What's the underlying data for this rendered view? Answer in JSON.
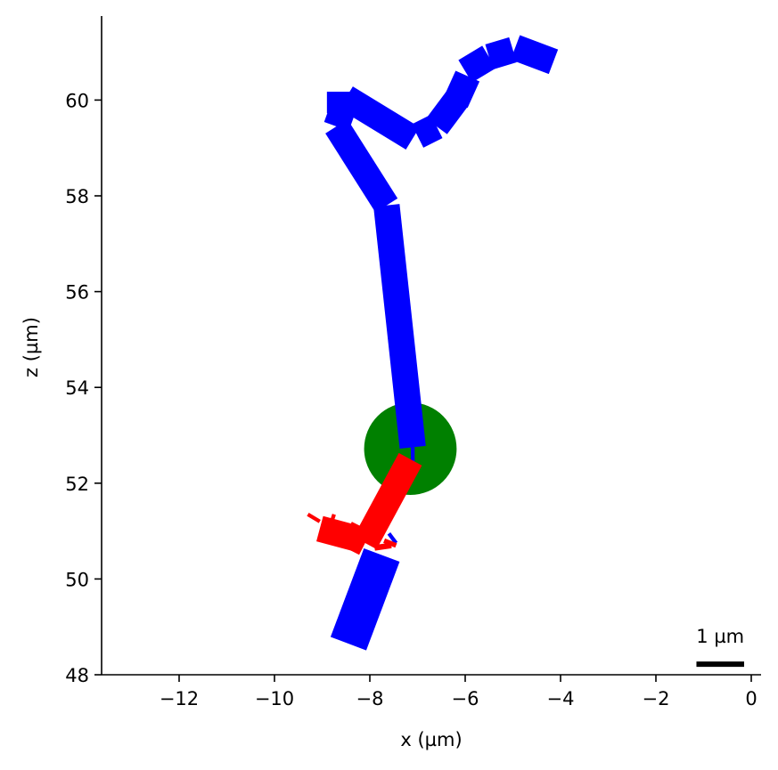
{
  "chart_data": {
    "type": "morphology",
    "xlabel": "x (µm)",
    "ylabel": "z (µm)",
    "xlim": [
      -13.6,
      0.2
    ],
    "ylim": [
      48,
      61.75
    ],
    "x_ticks": [
      -12,
      -10,
      -8,
      -6,
      -4,
      -2,
      0
    ],
    "x_tick_labels": [
      "−12",
      "−10",
      "−8",
      "−6",
      "−4",
      "−2",
      "0"
    ],
    "y_ticks": [
      48,
      50,
      52,
      54,
      56,
      58,
      60
    ],
    "y_tick_labels": [
      "48",
      "50",
      "52",
      "54",
      "56",
      "58",
      "60"
    ],
    "grid": false,
    "colors": {
      "soma": "#008000",
      "dendrite": "#0000ff",
      "axon": "#ff0000",
      "scalebar": "#000000"
    },
    "soma": {
      "x": -7.15,
      "z": 52.72,
      "radius": 0.97
    },
    "series": [
      {
        "color": "#0000ff",
        "segments": [
          {
            "x0": -7.1,
            "z0": 52.75,
            "x1": -7.65,
            "z1": 57.8,
            "width": 0.55
          },
          {
            "x0": -7.65,
            "z0": 57.8,
            "x1": -8.7,
            "z1": 59.45,
            "width": 0.55
          },
          {
            "x0": -8.7,
            "z0": 59.45,
            "x1": -8.5,
            "z1": 60.0,
            "width": 0.55
          },
          {
            "x0": -8.9,
            "z0": 59.95,
            "x1": -8.35,
            "z1": 59.95,
            "width": 0.45
          },
          {
            "x0": -8.5,
            "z0": 60.05,
            "x1": -7.1,
            "z1": 59.2,
            "width": 0.55
          },
          {
            "x0": -7.0,
            "z0": 59.25,
            "x1": -6.6,
            "z1": 59.45,
            "width": 0.55
          },
          {
            "x0": -6.6,
            "z0": 59.45,
            "x1": -6.15,
            "z1": 60.05,
            "width": 0.55
          },
          {
            "x0": -6.2,
            "z0": 59.95,
            "x1": -5.95,
            "z1": 60.5,
            "width": 0.55
          },
          {
            "x0": -6.0,
            "z0": 60.6,
            "x1": -5.5,
            "z1": 60.9,
            "width": 0.55
          },
          {
            "x0": -5.5,
            "z0": 60.9,
            "x1": -5.0,
            "z1": 61.05,
            "width": 0.55
          },
          {
            "x0": -4.95,
            "z0": 61.1,
            "x1": -4.15,
            "z1": 60.8,
            "width": 0.55
          },
          {
            "x0": -7.1,
            "z0": 52.75,
            "x1": -7.1,
            "z1": 52.45,
            "width": 0.08
          },
          {
            "x0": -7.45,
            "z0": 50.75,
            "x1": -7.6,
            "z1": 50.95,
            "width": 0.08
          },
          {
            "x0": -7.75,
            "z0": 50.5,
            "x1": -8.45,
            "z1": 48.65,
            "width": 0.8
          }
        ]
      },
      {
        "color": "#ff0000",
        "segments": [
          {
            "x0": -7.15,
            "z0": 52.5,
            "x1": -8.1,
            "z1": 50.75,
            "width": 0.55
          },
          {
            "x0": -8.1,
            "z0": 50.75,
            "x1": -8.5,
            "z1": 50.95,
            "width": 0.55
          },
          {
            "x0": -8.3,
            "z0": 50.85,
            "x1": -9.05,
            "z1": 51.05,
            "width": 0.55
          },
          {
            "x0": -9.05,
            "z0": 51.2,
            "x1": -9.3,
            "z1": 51.35,
            "width": 0.08
          },
          {
            "x0": -8.8,
            "z0": 51.2,
            "x1": -8.75,
            "z1": 51.35,
            "width": 0.08
          },
          {
            "x0": -7.9,
            "z0": 50.65,
            "x1": -7.55,
            "z1": 50.7,
            "width": 0.12
          },
          {
            "x0": -7.7,
            "z0": 50.8,
            "x1": -7.45,
            "z1": 50.7,
            "width": 0.1
          }
        ]
      }
    ],
    "scalebar": {
      "label": "1 µm",
      "length": 1,
      "x_end": -0.15,
      "z": 48.22
    }
  }
}
